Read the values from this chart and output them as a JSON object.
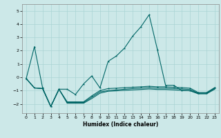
{
  "xlabel": "Humidex (Indice chaleur)",
  "bg_color": "#cce8e8",
  "line_color": "#006666",
  "grid_color": "#aad4d4",
  "xlim": [
    -0.5,
    23.5
  ],
  "ylim": [
    -2.7,
    5.5
  ],
  "yticks": [
    -2,
    -1,
    0,
    1,
    2,
    3,
    4,
    5
  ],
  "xticks": [
    0,
    1,
    2,
    3,
    4,
    5,
    6,
    7,
    8,
    9,
    10,
    11,
    12,
    13,
    14,
    15,
    16,
    17,
    18,
    19,
    20,
    21,
    22,
    23
  ],
  "s1": [
    [
      0,
      -0.1
    ],
    [
      1,
      2.3
    ],
    [
      2,
      -0.8
    ],
    [
      3,
      -2.2
    ],
    [
      4,
      -0.9
    ],
    [
      5,
      -0.9
    ],
    [
      6,
      -1.3
    ],
    [
      7,
      -0.5
    ],
    [
      8,
      0.1
    ],
    [
      9,
      -0.8
    ],
    [
      10,
      1.2
    ],
    [
      11,
      1.6
    ],
    [
      12,
      2.2
    ],
    [
      13,
      3.1
    ],
    [
      14,
      3.8
    ],
    [
      15,
      4.7
    ],
    [
      16,
      2.1
    ],
    [
      17,
      -0.6
    ],
    [
      18,
      -0.6
    ],
    [
      19,
      -1.0
    ],
    [
      20,
      -1.0
    ],
    [
      21,
      -1.2
    ],
    [
      22,
      -1.2
    ],
    [
      23,
      -0.8
    ]
  ],
  "s2": [
    [
      0,
      -0.1
    ],
    [
      1,
      -0.8
    ],
    [
      2,
      -0.85
    ],
    [
      3,
      -2.2
    ],
    [
      4,
      -0.9
    ],
    [
      5,
      -1.85
    ],
    [
      6,
      -1.85
    ],
    [
      7,
      -1.85
    ],
    [
      8,
      -1.4
    ],
    [
      9,
      -1.0
    ],
    [
      10,
      -0.85
    ],
    [
      11,
      -0.82
    ],
    [
      12,
      -0.78
    ],
    [
      13,
      -0.75
    ],
    [
      14,
      -0.72
    ],
    [
      15,
      -0.68
    ],
    [
      16,
      -0.72
    ],
    [
      17,
      -0.72
    ],
    [
      18,
      -0.75
    ],
    [
      19,
      -0.78
    ],
    [
      20,
      -0.82
    ],
    [
      21,
      -1.15
    ],
    [
      22,
      -1.15
    ],
    [
      23,
      -0.78
    ]
  ],
  "s3": [
    [
      0,
      -0.1
    ],
    [
      1,
      -0.8
    ],
    [
      2,
      -0.85
    ],
    [
      3,
      -2.2
    ],
    [
      4,
      -0.9
    ],
    [
      5,
      -1.9
    ],
    [
      6,
      -1.9
    ],
    [
      7,
      -1.9
    ],
    [
      8,
      -1.5
    ],
    [
      9,
      -1.1
    ],
    [
      10,
      -1.0
    ],
    [
      11,
      -0.95
    ],
    [
      12,
      -0.9
    ],
    [
      13,
      -0.85
    ],
    [
      14,
      -0.82
    ],
    [
      15,
      -0.78
    ],
    [
      16,
      -0.82
    ],
    [
      17,
      -0.82
    ],
    [
      18,
      -0.85
    ],
    [
      19,
      -0.88
    ],
    [
      20,
      -0.92
    ],
    [
      21,
      -1.2
    ],
    [
      22,
      -1.2
    ],
    [
      23,
      -0.85
    ]
  ],
  "s4": [
    [
      0,
      -0.1
    ],
    [
      1,
      -0.8
    ],
    [
      2,
      -0.85
    ],
    [
      3,
      -2.2
    ],
    [
      4,
      -0.9
    ],
    [
      5,
      -1.95
    ],
    [
      6,
      -1.95
    ],
    [
      7,
      -1.95
    ],
    [
      8,
      -1.6
    ],
    [
      9,
      -1.2
    ],
    [
      10,
      -1.05
    ],
    [
      11,
      -1.02
    ],
    [
      12,
      -0.98
    ],
    [
      13,
      -0.95
    ],
    [
      14,
      -0.92
    ],
    [
      15,
      -0.88
    ],
    [
      16,
      -0.92
    ],
    [
      17,
      -0.92
    ],
    [
      18,
      -0.95
    ],
    [
      19,
      -0.98
    ],
    [
      20,
      -1.02
    ],
    [
      21,
      -1.25
    ],
    [
      22,
      -1.25
    ],
    [
      23,
      -0.9
    ]
  ]
}
